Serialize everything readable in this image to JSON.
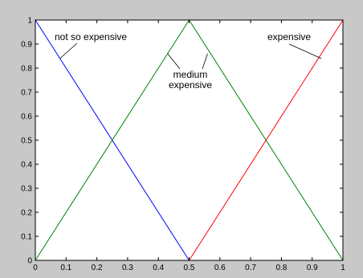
{
  "chart_data": {
    "type": "line",
    "xlim": [
      0,
      1
    ],
    "ylim": [
      0,
      1
    ],
    "x_ticks": [
      0,
      0.1,
      0.2,
      0.3,
      0.4,
      0.5,
      0.6,
      0.7,
      0.8,
      0.9,
      1
    ],
    "y_ticks": [
      0,
      0.1,
      0.2,
      0.3,
      0.4,
      0.5,
      0.6,
      0.7,
      0.8,
      0.9,
      1
    ],
    "x_tick_labels": [
      "0",
      "0.1",
      "0.2",
      "0.3",
      "0.4",
      "0.5",
      "0.6",
      "0.7",
      "0.8",
      "0.9",
      "1"
    ],
    "y_tick_labels": [
      "0",
      "0.1",
      "0.2",
      "0.3",
      "0.4",
      "0.5",
      "0.6",
      "0.7",
      "0.8",
      "0.9",
      "1"
    ],
    "grid": false,
    "legend": false,
    "series": [
      {
        "color": "#0000ff",
        "x": [
          0,
          0.5,
          1
        ],
        "y": [
          1,
          0,
          0
        ]
      },
      {
        "color": "#008000",
        "x": [
          0,
          0.5,
          1
        ],
        "y": [
          0,
          1,
          0
        ]
      },
      {
        "color": "#ff0000",
        "x": [
          0,
          0.5,
          1
        ],
        "y": [
          0,
          0,
          1
        ]
      }
    ],
    "annotations": [
      {
        "lines": [
          "not so expensive"
        ],
        "target": [
          0.08,
          0.84
        ]
      },
      {
        "lines": [
          "medium",
          "expensive"
        ],
        "targets": [
          [
            0.43,
            0.86
          ],
          [
            0.56,
            0.86
          ]
        ]
      },
      {
        "lines": [
          "expensive"
        ],
        "target": [
          0.93,
          0.84
        ]
      }
    ]
  }
}
